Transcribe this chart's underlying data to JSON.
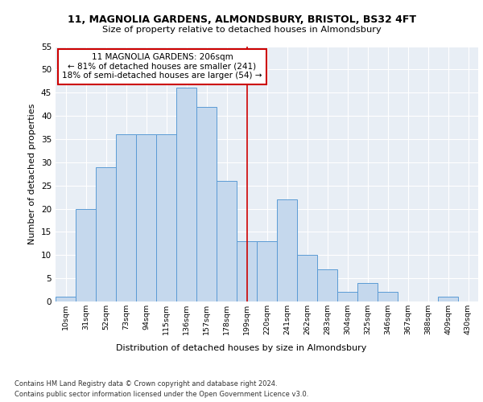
{
  "title1": "11, MAGNOLIA GARDENS, ALMONDSBURY, BRISTOL, BS32 4FT",
  "title2": "Size of property relative to detached houses in Almondsbury",
  "xlabel": "Distribution of detached houses by size in Almondsbury",
  "ylabel": "Number of detached properties",
  "bin_labels": [
    "10sqm",
    "31sqm",
    "52sqm",
    "73sqm",
    "94sqm",
    "115sqm",
    "136sqm",
    "157sqm",
    "178sqm",
    "199sqm",
    "220sqm",
    "241sqm",
    "262sqm",
    "283sqm",
    "304sqm",
    "325sqm",
    "346sqm",
    "367sqm",
    "388sqm",
    "409sqm",
    "430sqm"
  ],
  "bar_heights": [
    1,
    20,
    29,
    36,
    36,
    36,
    46,
    42,
    26,
    13,
    13,
    22,
    10,
    7,
    2,
    4,
    2,
    0,
    0,
    1,
    0
  ],
  "bar_color": "#c5d8ed",
  "bar_edge_color": "#5b9bd5",
  "vline_x_index": 9.0,
  "annotation_text": "11 MAGNOLIA GARDENS: 206sqm\n← 81% of detached houses are smaller (241)\n18% of semi-detached houses are larger (54) →",
  "annotation_box_color": "#ffffff",
  "annotation_box_edge": "#cc0000",
  "vline_color": "#cc0000",
  "ylim": [
    0,
    55
  ],
  "yticks": [
    0,
    5,
    10,
    15,
    20,
    25,
    30,
    35,
    40,
    45,
    50,
    55
  ],
  "footer1": "Contains HM Land Registry data © Crown copyright and database right 2024.",
  "footer2": "Contains public sector information licensed under the Open Government Licence v3.0.",
  "plot_bg_color": "#e8eef5"
}
